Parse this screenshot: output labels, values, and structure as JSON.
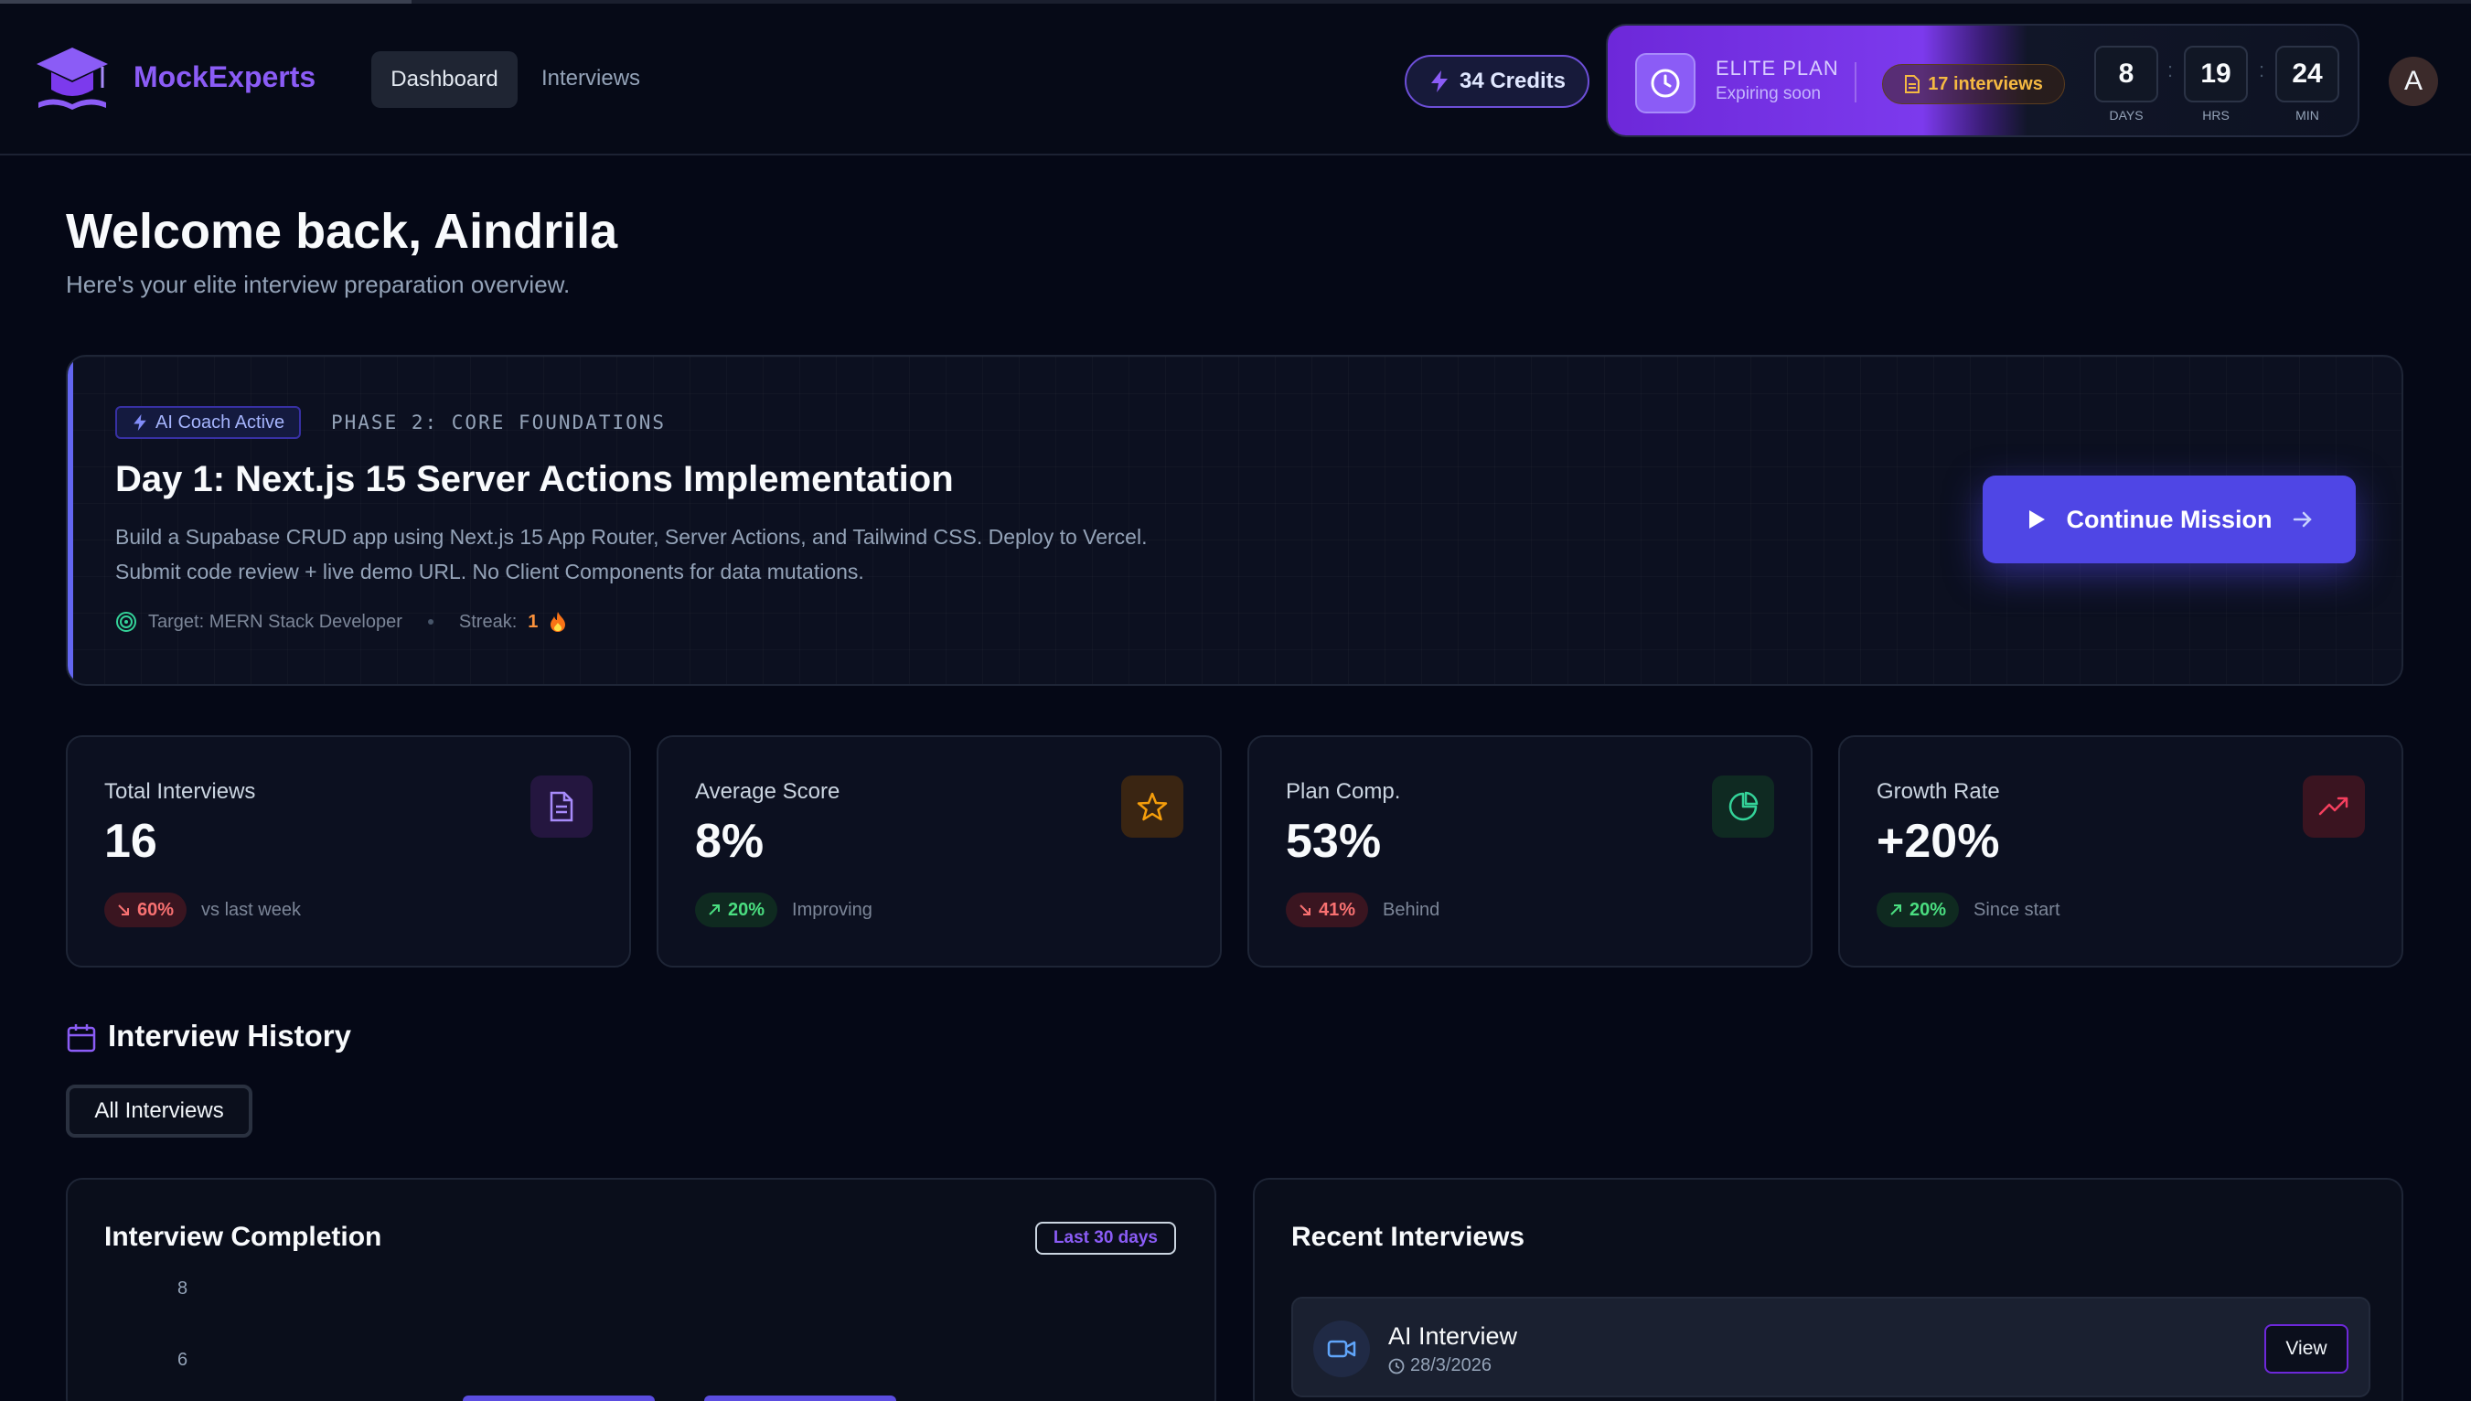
{
  "header": {
    "brand": "MockExperts",
    "nav": {
      "dashboard": "Dashboard",
      "interviews": "Interviews"
    },
    "credits": "34 Credits",
    "plan": {
      "name": "ELITE PLAN",
      "status": "Expiring soon",
      "interviews": "17 interviews",
      "timer": {
        "days": "8",
        "days_label": "DAYS",
        "hours": "19",
        "hours_label": "HRS",
        "minutes": "24",
        "minutes_label": "MIN"
      }
    },
    "avatar_initial": "A"
  },
  "welcome": {
    "title": "Welcome back, Aindrila",
    "subtitle": "Here's your elite interview preparation overview."
  },
  "mission": {
    "badge": "AI Coach Active",
    "phase": "PHASE 2: CORE FOUNDATIONS",
    "title": "Day 1: Next.js 15 Server Actions Implementation",
    "description": "Build a Supabase CRUD app using Next.js 15 App Router, Server Actions, and Tailwind CSS. Deploy to Vercel. Submit code review + live demo URL. No Client Components for data mutations.",
    "target": "Target: MERN Stack Developer",
    "streak_label": "Streak:",
    "streak_value": "1",
    "cta": "Continue Mission"
  },
  "stats": [
    {
      "label": "Total Interviews",
      "value": "16",
      "change": "60%",
      "direction": "down",
      "note": "vs last week",
      "icon": "document-icon",
      "accent": "#8b5cf6"
    },
    {
      "label": "Average Score",
      "value": "8%",
      "change": "20%",
      "direction": "up",
      "note": "Improving",
      "icon": "star-icon",
      "accent": "#f59e0b"
    },
    {
      "label": "Plan Comp.",
      "value": "53%",
      "change": "41%",
      "direction": "down",
      "note": "Behind",
      "icon": "pie-chart-icon",
      "accent": "#34d399"
    },
    {
      "label": "Growth Rate",
      "value": "+20%",
      "change": "20%",
      "direction": "up",
      "note": "Since start",
      "icon": "trending-up-icon",
      "accent": "#f43f5e"
    }
  ],
  "history": {
    "title": "Interview History",
    "filter": "All Interviews"
  },
  "completion": {
    "title": "Interview Completion",
    "range": "Last 30 days",
    "y_ticks": [
      "8",
      "6"
    ]
  },
  "recent": {
    "title": "Recent Interviews",
    "items": [
      {
        "name": "AI Interview",
        "date": "28/3/2026",
        "action": "View"
      }
    ]
  },
  "colors": {
    "accent": "#8b5cf6",
    "primary": "#4f46e5",
    "background": "#050816"
  }
}
